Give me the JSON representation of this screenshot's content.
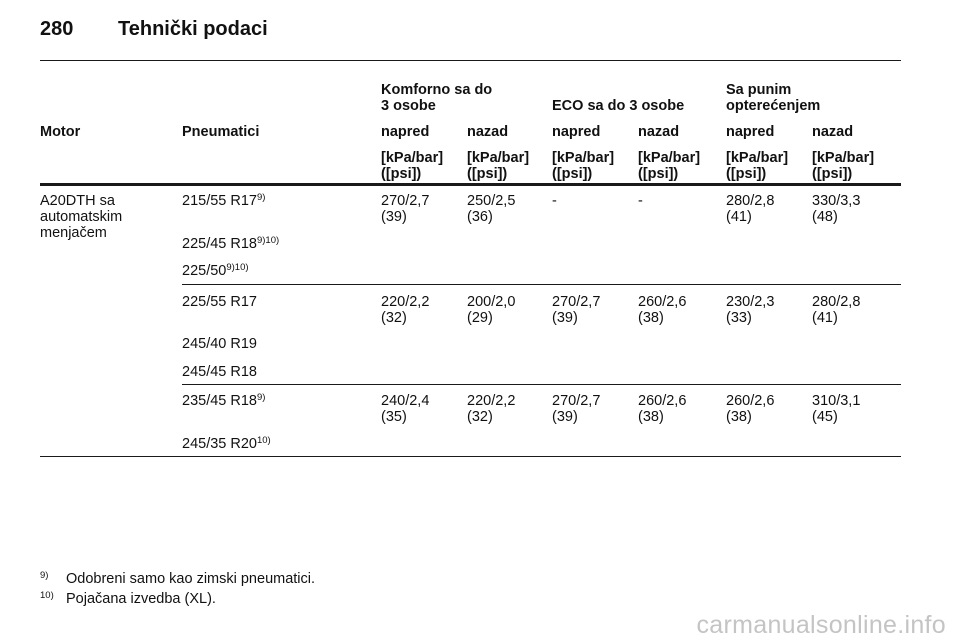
{
  "header": {
    "page_number": "280",
    "title": "Tehnički podaci"
  },
  "table": {
    "group_headers": {
      "comfort": {
        "line1": "Komforno sa do",
        "line2": "3 osobe"
      },
      "eco": "ECO sa do 3 osobe",
      "full": {
        "line1": "Sa punim",
        "line2": "opterećenjem"
      }
    },
    "col_headers": {
      "motor": "Motor",
      "tyres": "Pneumatici",
      "front": "napred",
      "rear": "nazad"
    },
    "unit": {
      "line1": "[kPa/bar]",
      "line2": "([psi])"
    },
    "motor": {
      "line1": "A20DTH sa",
      "line2": "automatskim",
      "line3": "menjačem"
    },
    "groups": [
      {
        "tyres": [
          {
            "size": "215/55 R17",
            "note": "9)"
          },
          {
            "size": "225/45 R18",
            "note": "9)10)"
          },
          {
            "size": "225/50",
            "note": "9)10)"
          }
        ],
        "values": [
          {
            "pressure": "270/2,7",
            "psi": "(39)"
          },
          {
            "pressure": "250/2,5",
            "psi": "(36)"
          },
          {
            "pressure": "-",
            "psi": ""
          },
          {
            "pressure": "-",
            "psi": ""
          },
          {
            "pressure": "280/2,8",
            "psi": "(41)"
          },
          {
            "pressure": "330/3,3",
            "psi": "(48)"
          }
        ]
      },
      {
        "tyres": [
          {
            "size": "225/55 R17",
            "note": ""
          },
          {
            "size": "245/40 R19",
            "note": ""
          },
          {
            "size": "245/45 R18",
            "note": ""
          }
        ],
        "values": [
          {
            "pressure": "220/2,2",
            "psi": "(32)"
          },
          {
            "pressure": "200/2,0",
            "psi": "(29)"
          },
          {
            "pressure": "270/2,7",
            "psi": "(39)"
          },
          {
            "pressure": "260/2,6",
            "psi": "(38)"
          },
          {
            "pressure": "230/2,3",
            "psi": "(33)"
          },
          {
            "pressure": "280/2,8",
            "psi": "(41)"
          }
        ]
      },
      {
        "tyres": [
          {
            "size": "235/45 R18",
            "note": "9)"
          },
          {
            "size": "245/35 R20",
            "note": "10)"
          }
        ],
        "values": [
          {
            "pressure": "240/2,4",
            "psi": "(35)"
          },
          {
            "pressure": "220/2,2",
            "psi": "(32)"
          },
          {
            "pressure": "270/2,7",
            "psi": "(39)"
          },
          {
            "pressure": "260/2,6",
            "psi": "(38)"
          },
          {
            "pressure": "260/2,6",
            "psi": "(38)"
          },
          {
            "pressure": "310/3,1",
            "psi": "(45)"
          }
        ]
      }
    ]
  },
  "footnotes": [
    {
      "mark": "9)",
      "text": "Odobreni samo kao zimski pneumatici."
    },
    {
      "mark": "10)",
      "text": "Pojačana izvedba (XL)."
    }
  ],
  "watermark": "carmanualsonline.info"
}
